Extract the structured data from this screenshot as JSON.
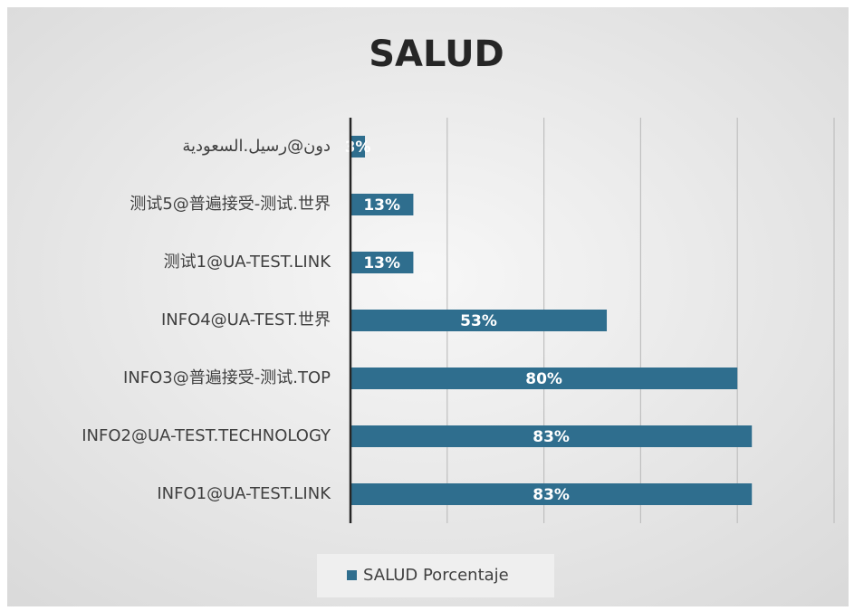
{
  "chart_data": {
    "type": "hbar",
    "title": "SALUD",
    "categories": [
      "دون@رسيل.السعودية",
      "测试5@普遍接受-测试.世界",
      "测试1@UA-TEST.LINK",
      "INFO4@UA-TEST.世界",
      "INFO3@普遍接受-测试.TOP",
      "INFO2@UA-TEST.TECHNOLOGY",
      "INFO1@UA-TEST.LINK"
    ],
    "series": [
      {
        "name": "SALUD Porcentaje",
        "color": "#2f6e8e",
        "values": [
          3,
          13,
          13,
          53,
          80,
          83,
          83
        ],
        "value_labels": [
          "3%",
          "13%",
          "13%",
          "53%",
          "80%",
          "83%",
          "83%"
        ]
      }
    ],
    "xlim": [
      0,
      100
    ],
    "xticks": [
      0,
      20,
      40,
      60,
      80,
      100
    ],
    "grid": true,
    "legend": "bottom"
  }
}
